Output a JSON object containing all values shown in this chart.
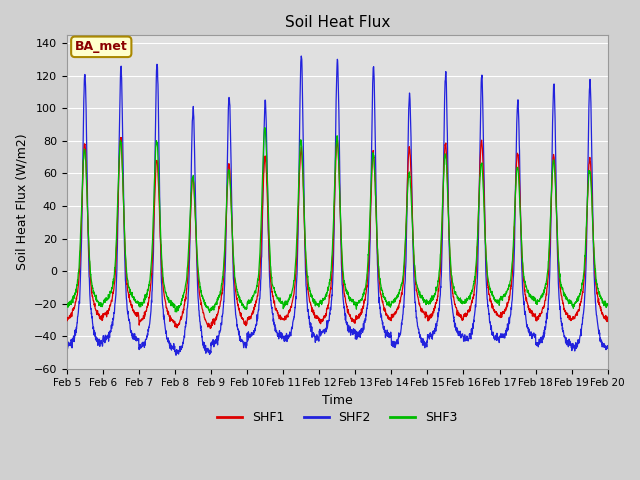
{
  "title": "Soil Heat Flux",
  "xlabel": "Time",
  "ylabel": "Soil Heat Flux (W/m2)",
  "ylim": [
    -60,
    145
  ],
  "yticks": [
    -60,
    -40,
    -20,
    0,
    20,
    40,
    60,
    80,
    100,
    120,
    140
  ],
  "legend_labels": [
    "SHF1",
    "SHF2",
    "SHF3"
  ],
  "legend_colors": [
    "#dd0000",
    "#2222dd",
    "#00bb00"
  ],
  "annotation_text": "BA_met",
  "annotation_bg": "#ffffcc",
  "annotation_border": "#aa8800",
  "fig_bg_color": "#d0d0d0",
  "plot_bg_color": "#e0e0e0",
  "n_days": 15,
  "start_day": 5,
  "samples_per_day": 144,
  "peaks1": [
    78,
    82,
    68,
    57,
    65,
    70,
    75,
    80,
    72,
    76,
    78,
    80,
    73,
    71,
    69
  ],
  "peaks2": [
    122,
    125,
    128,
    100,
    108,
    105,
    132,
    130,
    125,
    108,
    122,
    120,
    105,
    114,
    117
  ],
  "peaks3": [
    75,
    80,
    80,
    58,
    62,
    88,
    80,
    82,
    72,
    60,
    72,
    66,
    64,
    68,
    62
  ],
  "night1": [
    -30,
    -28,
    -32,
    -35,
    -33,
    -30,
    -30,
    -32,
    -30,
    -28,
    -30,
    -28,
    -28,
    -30,
    -30
  ],
  "night2": [
    -45,
    -42,
    -47,
    -50,
    -45,
    -40,
    -42,
    -38,
    -40,
    -45,
    -40,
    -42,
    -40,
    -45,
    -47
  ],
  "night3": [
    -22,
    -20,
    -22,
    -25,
    -24,
    -20,
    -22,
    -20,
    -22,
    -20,
    -20,
    -20,
    -18,
    -20,
    -22
  ]
}
